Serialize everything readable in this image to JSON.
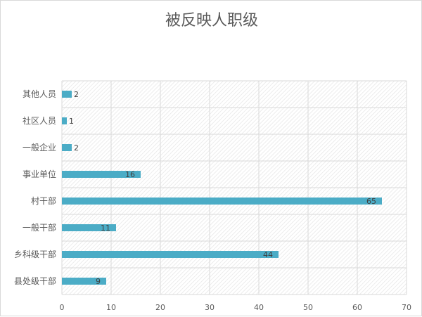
{
  "chart_data": {
    "type": "bar",
    "orientation": "horizontal",
    "title": "被反映人职级",
    "categories": [
      "其他人员",
      "社区人员",
      "一般企业",
      "事业单位",
      "村干部",
      "一般干部",
      "乡科级干部",
      "县处级干部"
    ],
    "values": [
      2,
      1,
      2,
      16,
      65,
      11,
      44,
      9
    ],
    "xlim": [
      0,
      70
    ],
    "xticks": [
      "0",
      "10",
      "20",
      "30",
      "40",
      "50",
      "60",
      "70"
    ],
    "xlabel": "",
    "ylabel": "",
    "grid": true,
    "legend": "none",
    "colors": {
      "bar": "#4bacc6",
      "grid": "#d9d9d9",
      "text": "#595959",
      "label": "#404040"
    }
  }
}
